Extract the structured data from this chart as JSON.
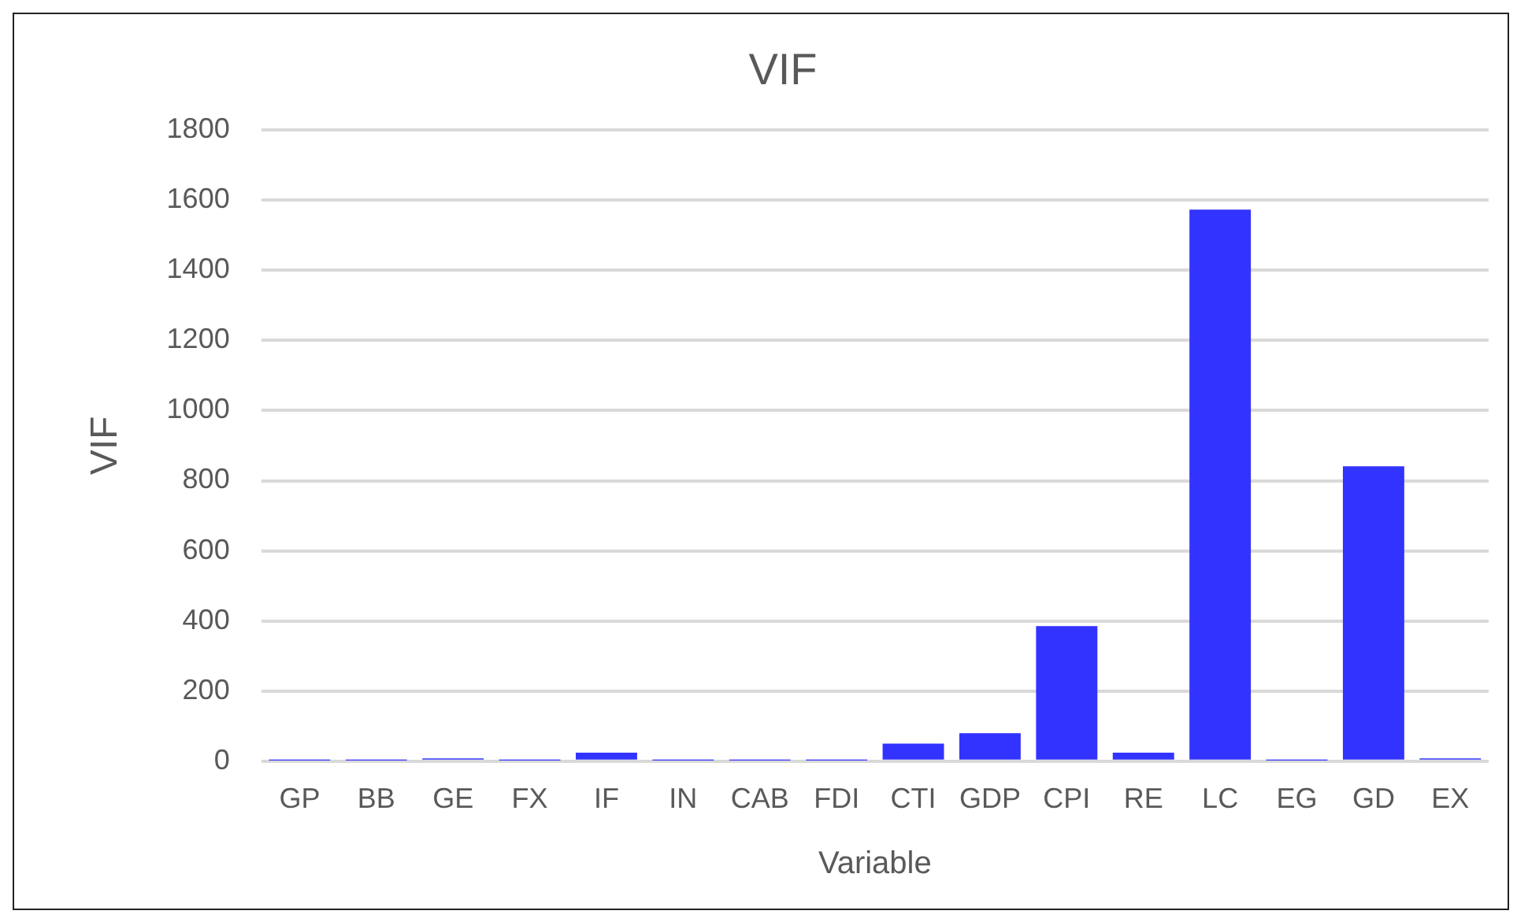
{
  "chart_data": {
    "type": "bar",
    "title": "VIF",
    "xlabel": "Variable",
    "ylabel": "VIF",
    "categories": [
      "GP",
      "BB",
      "GE",
      "FX",
      "IF",
      "IN",
      "CAB",
      "FDI",
      "CTI",
      "GDP",
      "CPI",
      "RE",
      "LC",
      "EG",
      "GD",
      "EX"
    ],
    "values": [
      2,
      2,
      8,
      2,
      24,
      2,
      2,
      2,
      50,
      80,
      385,
      24,
      1573,
      2,
      841,
      8
    ],
    "color": "#3333ff",
    "ylim": [
      0,
      1800
    ],
    "yticks": [
      0,
      200,
      400,
      600,
      800,
      1000,
      1200,
      1400,
      1600,
      1800
    ],
    "grid": "y",
    "legend": false
  }
}
